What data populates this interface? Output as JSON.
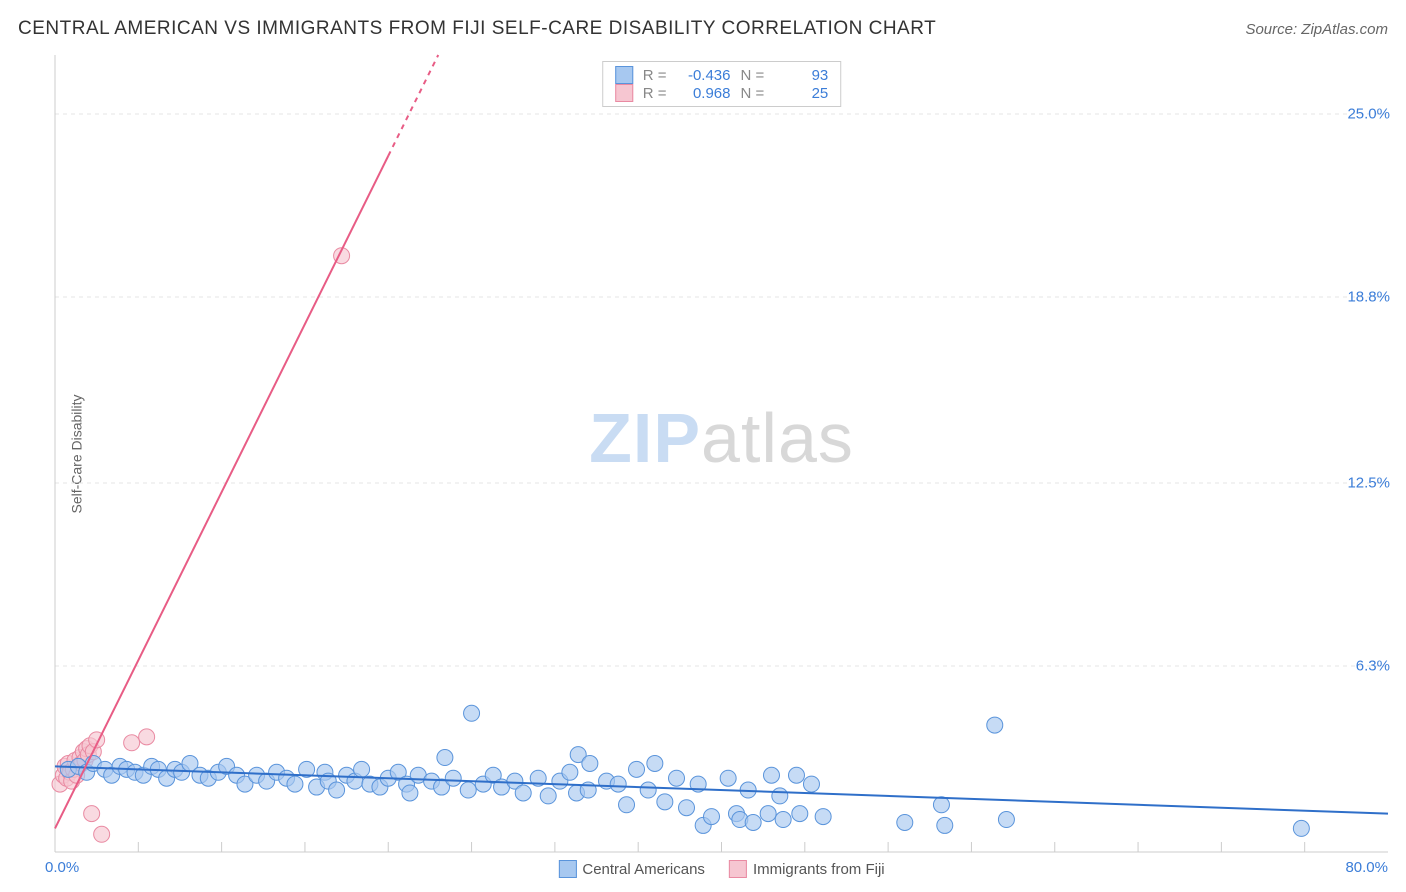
{
  "title": "CENTRAL AMERICAN VS IMMIGRANTS FROM FIJI SELF-CARE DISABILITY CORRELATION CHART",
  "source": "Source: ZipAtlas.com",
  "watermark": {
    "part1": "ZIP",
    "part2": "atlas"
  },
  "axes": {
    "y_label": "Self-Care Disability",
    "x_min": 0,
    "x_max": 80,
    "y_min": 0,
    "y_max": 27,
    "x_origin_label": "0.0%",
    "x_max_label": "80.0%",
    "y_grid": [
      {
        "value": 6.3,
        "label": "6.3%"
      },
      {
        "value": 12.5,
        "label": "12.5%"
      },
      {
        "value": 18.8,
        "label": "18.8%"
      },
      {
        "value": 25.0,
        "label": "25.0%"
      }
    ],
    "x_ticks": [
      5,
      10,
      15,
      20,
      25,
      30,
      35,
      40,
      45,
      50,
      55,
      60,
      65,
      70,
      75
    ],
    "grid_color": "#e5e5e5",
    "axis_color": "#cccccc",
    "label_color": "#3b7dd8",
    "axis_text_color": "#666666",
    "label_fontsize": 14
  },
  "series": [
    {
      "name": "Central Americans",
      "label": "Central Americans",
      "color_fill": "#a7c8f0",
      "color_stroke": "#5a94db",
      "marker_radius": 8,
      "trend": {
        "x1": 0,
        "y1": 2.9,
        "x2": 80,
        "y2": 1.3,
        "color": "#2f6fc9",
        "width": 2
      },
      "stats": {
        "R": "-0.436",
        "N": "93"
      },
      "points": [
        [
          0.8,
          2.8
        ],
        [
          1.4,
          2.9
        ],
        [
          1.9,
          2.7
        ],
        [
          2.3,
          3.0
        ],
        [
          3.0,
          2.8
        ],
        [
          3.4,
          2.6
        ],
        [
          3.9,
          2.9
        ],
        [
          4.3,
          2.8
        ],
        [
          4.8,
          2.7
        ],
        [
          5.3,
          2.6
        ],
        [
          5.8,
          2.9
        ],
        [
          6.2,
          2.8
        ],
        [
          6.7,
          2.5
        ],
        [
          7.2,
          2.8
        ],
        [
          7.6,
          2.7
        ],
        [
          8.1,
          3.0
        ],
        [
          8.7,
          2.6
        ],
        [
          9.2,
          2.5
        ],
        [
          9.8,
          2.7
        ],
        [
          10.3,
          2.9
        ],
        [
          10.9,
          2.6
        ],
        [
          11.4,
          2.3
        ],
        [
          12.1,
          2.6
        ],
        [
          12.7,
          2.4
        ],
        [
          13.3,
          2.7
        ],
        [
          13.9,
          2.5
        ],
        [
          14.4,
          2.3
        ],
        [
          15.1,
          2.8
        ],
        [
          15.7,
          2.2
        ],
        [
          16.2,
          2.7
        ],
        [
          16.4,
          2.4
        ],
        [
          16.9,
          2.1
        ],
        [
          17.5,
          2.6
        ],
        [
          18.0,
          2.4
        ],
        [
          18.4,
          2.8
        ],
        [
          18.9,
          2.3
        ],
        [
          19.5,
          2.2
        ],
        [
          20.0,
          2.5
        ],
        [
          20.6,
          2.7
        ],
        [
          21.1,
          2.3
        ],
        [
          21.3,
          2.0
        ],
        [
          21.8,
          2.6
        ],
        [
          22.6,
          2.4
        ],
        [
          23.2,
          2.2
        ],
        [
          23.4,
          3.2
        ],
        [
          23.9,
          2.5
        ],
        [
          24.8,
          2.1
        ],
        [
          25.0,
          4.7
        ],
        [
          25.7,
          2.3
        ],
        [
          26.3,
          2.6
        ],
        [
          26.8,
          2.2
        ],
        [
          27.6,
          2.4
        ],
        [
          28.1,
          2.0
        ],
        [
          29.0,
          2.5
        ],
        [
          29.6,
          1.9
        ],
        [
          30.3,
          2.4
        ],
        [
          30.9,
          2.7
        ],
        [
          31.3,
          2.0
        ],
        [
          31.4,
          3.3
        ],
        [
          32.0,
          2.1
        ],
        [
          32.1,
          3.0
        ],
        [
          33.1,
          2.4
        ],
        [
          33.8,
          2.3
        ],
        [
          34.3,
          1.6
        ],
        [
          34.9,
          2.8
        ],
        [
          35.6,
          2.1
        ],
        [
          36.0,
          3.0
        ],
        [
          36.6,
          1.7
        ],
        [
          37.3,
          2.5
        ],
        [
          37.9,
          1.5
        ],
        [
          38.6,
          2.3
        ],
        [
          38.9,
          0.9
        ],
        [
          39.4,
          1.2
        ],
        [
          40.4,
          2.5
        ],
        [
          40.9,
          1.3
        ],
        [
          41.1,
          1.1
        ],
        [
          41.6,
          2.1
        ],
        [
          41.9,
          1.0
        ],
        [
          42.8,
          1.3
        ],
        [
          43.0,
          2.6
        ],
        [
          43.5,
          1.9
        ],
        [
          43.7,
          1.1
        ],
        [
          44.5,
          2.6
        ],
        [
          44.7,
          1.3
        ],
        [
          45.4,
          2.3
        ],
        [
          46.1,
          1.2
        ],
        [
          51.0,
          1.0
        ],
        [
          53.2,
          1.6
        ],
        [
          53.4,
          0.9
        ],
        [
          56.4,
          4.3
        ],
        [
          57.1,
          1.1
        ],
        [
          74.8,
          0.8
        ]
      ]
    },
    {
      "name": "Immigrants from Fiji",
      "label": "Immigrants from Fiji",
      "color_fill": "#f6c6d1",
      "color_stroke": "#e98aa2",
      "marker_radius": 8,
      "trend": {
        "x1": 0,
        "y1": 0.8,
        "x2": 23,
        "y2": 27.0,
        "color": "#e85c85",
        "width": 2,
        "dash_after_x": 20
      },
      "stats": {
        "R": "0.968",
        "N": "25"
      },
      "points": [
        [
          0.3,
          2.3
        ],
        [
          0.5,
          2.6
        ],
        [
          0.6,
          2.9
        ],
        [
          0.7,
          2.5
        ],
        [
          0.8,
          3.0
        ],
        [
          0.9,
          2.7
        ],
        [
          1.0,
          2.4
        ],
        [
          1.1,
          2.8
        ],
        [
          1.2,
          3.1
        ],
        [
          1.3,
          2.6
        ],
        [
          1.4,
          2.9
        ],
        [
          1.5,
          3.2
        ],
        [
          1.6,
          3.0
        ],
        [
          1.7,
          3.4
        ],
        [
          1.8,
          3.1
        ],
        [
          1.9,
          3.5
        ],
        [
          2.0,
          3.3
        ],
        [
          2.1,
          3.6
        ],
        [
          2.3,
          3.4
        ],
        [
          2.5,
          3.8
        ],
        [
          2.2,
          1.3
        ],
        [
          2.8,
          0.6
        ],
        [
          4.6,
          3.7
        ],
        [
          5.5,
          3.9
        ],
        [
          17.2,
          20.2
        ]
      ]
    }
  ],
  "legend": {
    "stats_labels": {
      "R": "R =",
      "N": "N ="
    },
    "footer_items": [
      {
        "label": "Central Americans",
        "fill": "#a7c8f0",
        "stroke": "#5a94db"
      },
      {
        "label": "Immigrants from Fiji",
        "fill": "#f6c6d1",
        "stroke": "#e98aa2"
      }
    ]
  },
  "colors": {
    "background": "#ffffff",
    "title": "#333333",
    "source": "#666666"
  },
  "typography": {
    "title_fontsize": 19,
    "source_fontsize": 15
  }
}
